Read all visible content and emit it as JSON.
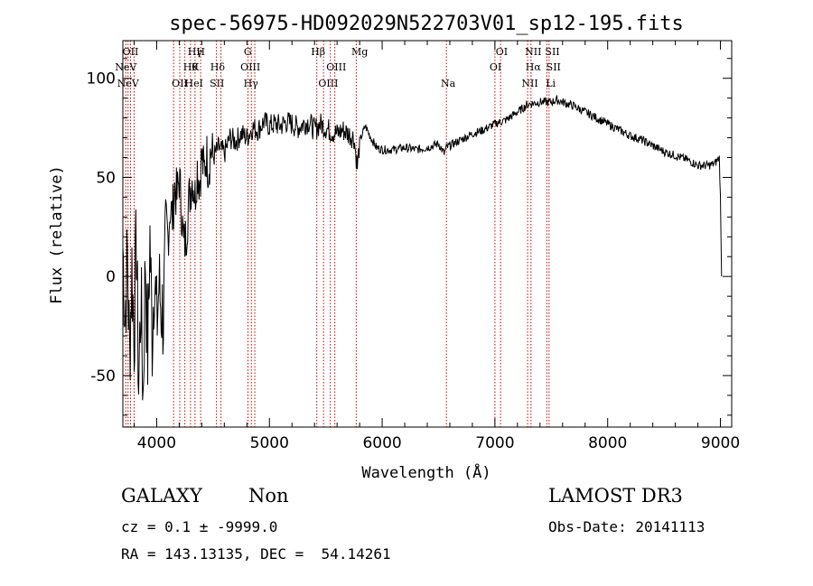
{
  "chart_data": {
    "type": "line",
    "title": "spec-56975-HD092029N522703V01_sp12-195.fits",
    "xlabel": "Wavelength (Å)",
    "ylabel": "Flux (relative)",
    "xlim": [
      3700,
      9100
    ],
    "ylim": [
      -76,
      119
    ],
    "xticks": [
      4000,
      5000,
      6000,
      7000,
      8000,
      9000
    ],
    "yticks": [
      -50,
      0,
      50,
      100
    ],
    "grid": false,
    "line_color": "#000000",
    "marker_color": "#cc0000",
    "series": [
      {
        "values_x": [
          3700,
          3720,
          3740,
          3760,
          3780,
          3800,
          3820,
          3840,
          3860,
          3880,
          3900,
          3920,
          3940,
          3960,
          3980,
          4000,
          4020,
          4040,
          4060,
          4080,
          4100,
          4120,
          4140,
          4160,
          4180,
          4200,
          4220,
          4240,
          4260,
          4280,
          4300,
          4320,
          4340,
          4360,
          4380,
          4400,
          4420,
          4440,
          4460,
          4480,
          4500,
          4550,
          4600,
          4650,
          4700,
          4750,
          4800,
          4850,
          4900,
          4950,
          5000,
          5050,
          5100,
          5150,
          5200,
          5250,
          5300,
          5350,
          5400,
          5450,
          5500,
          5550,
          5600,
          5650,
          5700,
          5750,
          5780,
          5800,
          5850,
          5900,
          5950,
          6000,
          6100,
          6200,
          6300,
          6400,
          6500,
          6550,
          6570,
          6600,
          6700,
          6800,
          6900,
          7000,
          7100,
          7200,
          7300,
          7400,
          7500,
          7550,
          7600,
          7700,
          7800,
          7900,
          8000,
          8100,
          8200,
          8300,
          8400,
          8500,
          8600,
          8700,
          8800,
          8850,
          8900,
          8950,
          8990,
          9000,
          9010
        ],
        "values_y": [
          15,
          -20,
          10,
          -40,
          5,
          -30,
          20,
          -55,
          -10,
          -60,
          10,
          -40,
          20,
          -30,
          5,
          -25,
          -5,
          -15,
          -20,
          15,
          20,
          35,
          30,
          45,
          40,
          50,
          35,
          15,
          20,
          35,
          45,
          50,
          40,
          55,
          48,
          60,
          52,
          62,
          55,
          64,
          60,
          65,
          62,
          70,
          68,
          72,
          70,
          75,
          74,
          78,
          76,
          77,
          76,
          78,
          77,
          75,
          77,
          78,
          74,
          77,
          75,
          73,
          72,
          74,
          72,
          70,
          55,
          68,
          76,
          70,
          65,
          64,
          64,
          65,
          64,
          65,
          67,
          62,
          65,
          66,
          69,
          72,
          74,
          77,
          79,
          83,
          87,
          88,
          88,
          89,
          88,
          86,
          83,
          80,
          77,
          74,
          71,
          69,
          66,
          63,
          61,
          59,
          56,
          56,
          56,
          57,
          60,
          40,
          0
        ]
      }
    ],
    "lines": [
      {
        "label": "NeV",
        "x": 3726,
        "row": 1
      },
      {
        "label": "NeV",
        "x": 3746,
        "row": 2
      },
      {
        "label": "OII",
        "x": 3768,
        "row": 0
      },
      {
        "label": "Hγ",
        "x": 4340,
        "row": 0
      },
      {
        "label": "H",
        "x": 4390,
        "row": 0
      },
      {
        "label": "Hθ",
        "x": 4300,
        "row": 1
      },
      {
        "label": "K",
        "x": 4342,
        "row": 1
      },
      {
        "label": "Hδ",
        "x": 4540,
        "row": 1
      },
      {
        "label": "OII",
        "x": 4205,
        "row": 2
      },
      {
        "label": "HeI",
        "x": 4331,
        "row": 2
      },
      {
        "label": "SII",
        "x": 4535,
        "row": 2
      },
      {
        "label": "G",
        "x": 4808,
        "row": 0
      },
      {
        "label": "OIII",
        "x": 4831,
        "row": 1
      },
      {
        "label": "Hγ",
        "x": 4835,
        "row": 2
      },
      {
        "label": "Hβ",
        "x": 5432,
        "row": 0
      },
      {
        "label": "OIII",
        "x": 5593,
        "row": 1
      },
      {
        "label": "OIII",
        "x": 5522,
        "row": 2
      },
      {
        "label": "Mg",
        "x": 5800,
        "row": 0
      },
      {
        "label": "Na",
        "x": 6585,
        "row": 2
      },
      {
        "label": "OI",
        "x": 7060,
        "row": 0
      },
      {
        "label": "OI",
        "x": 7005,
        "row": 1
      },
      {
        "label": "NII",
        "x": 7340,
        "row": 0
      },
      {
        "label": "SII",
        "x": 7510,
        "row": 0
      },
      {
        "label": "Hα",
        "x": 7340,
        "row": 1
      },
      {
        "label": "SII",
        "x": 7520,
        "row": 1
      },
      {
        "label": "NII",
        "x": 7310,
        "row": 2
      },
      {
        "label": "Li",
        "x": 7495,
        "row": 2
      }
    ],
    "marker_lines_x": [
      3726,
      3746,
      3768,
      3800,
      4150,
      4205,
      4250,
      4300,
      4340,
      4390,
      4530,
      4570,
      4810,
      4840,
      4870,
      5420,
      5480,
      5540,
      5580,
      5770,
      6570,
      7000,
      7050,
      7290,
      7320,
      7460,
      7480
    ]
  },
  "info": {
    "classification": "GALAXY",
    "subclass": "Non",
    "survey": "LAMOST DR3",
    "redshift": "cz = 0.1 ± -9999.0",
    "obs_date": "Obs-Date: 20141113",
    "coords": "RA = 143.13135, DEC =  54.14261"
  }
}
